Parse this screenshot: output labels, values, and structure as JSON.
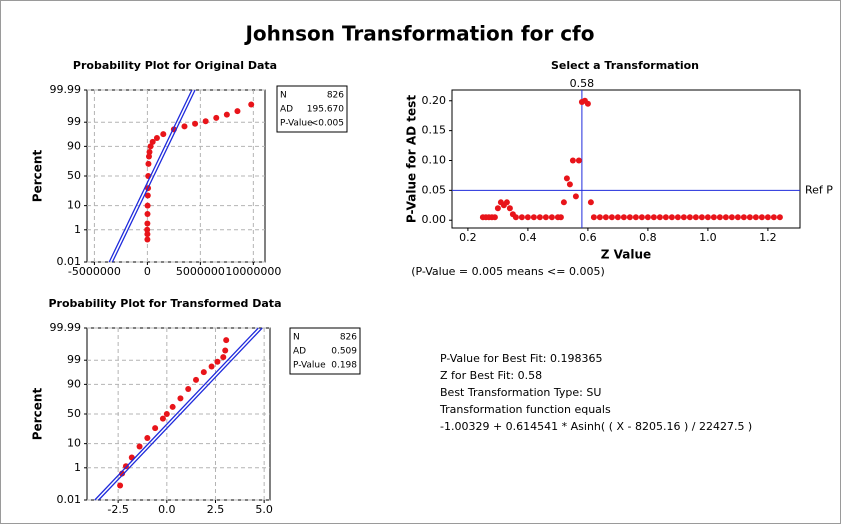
{
  "title": "Johnson Transformation for cfo",
  "chart_data": [
    {
      "type": "probability",
      "title": "Probability Plot for Original Data",
      "y_label": "Percent",
      "scale": "normal-probability",
      "grid": true,
      "xlim": [
        -5700000,
        11100000
      ],
      "xticks": [
        -5000000,
        0,
        5000000,
        10000000
      ],
      "ylim": [
        0.01,
        99.99
      ],
      "yticks": [
        0.01,
        1,
        10,
        50,
        90,
        99,
        99.99
      ],
      "series": [
        {
          "mode": "markers",
          "color": "#e8141a",
          "x": [
            0,
            0,
            -20000,
            0,
            10000,
            20000,
            40000,
            60000,
            80000,
            100000,
            150000,
            200000,
            300000,
            500000,
            900000,
            1500000,
            2500000,
            3500000,
            4500000,
            5500000,
            6500000,
            7500000,
            8500000,
            9800000
          ],
          "values": [
            0.3,
            0.6,
            1,
            2,
            5,
            10,
            20,
            30,
            50,
            70,
            80,
            85,
            90,
            93,
            95,
            96.5,
            97.8,
            98.4,
            98.8,
            99.1,
            99.4,
            99.6,
            99.75,
            99.9
          ]
        },
        {
          "mode": "line",
          "color": "#1f2bdc",
          "x": [
            -3600000,
            4200000
          ],
          "values": [
            0.01,
            99.99
          ]
        },
        {
          "mode": "line",
          "color": "#1f2bdc",
          "x": [
            -3300000,
            4500000
          ],
          "values": [
            0.01,
            99.99
          ]
        }
      ],
      "stats": [
        [
          "N",
          "826"
        ],
        [
          "AD",
          "195.670"
        ],
        [
          "P-Value",
          "<0.005"
        ]
      ]
    },
    {
      "type": "scatter",
      "title": "Select a Transformation",
      "x_label": "Z Value",
      "y_label": "P-Value for AD test",
      "grid": false,
      "xlim": [
        0.147,
        1.307
      ],
      "xticks": [
        0.2,
        0.4,
        0.6,
        0.8,
        {
          "value": 1,
          "label": "1.0"
        },
        1.2
      ],
      "ylim": [
        -0.013,
        0.218
      ],
      "yticks": [
        {
          "value": 0,
          "label": "0.00"
        },
        0.05,
        {
          "value": 0.1,
          "label": "0.10"
        },
        0.15,
        {
          "value": 0.2,
          "label": "0.20"
        }
      ],
      "series": [
        {
          "mode": "markers",
          "color": "#e8141a",
          "x": [
            0.25,
            0.26,
            0.27,
            0.28,
            0.29,
            0.3,
            0.31,
            0.32,
            0.33,
            0.34,
            0.35,
            0.36,
            0.38,
            0.4,
            0.42,
            0.44,
            0.46,
            0.48,
            0.5,
            0.51,
            0.52,
            0.53,
            0.54,
            0.55,
            0.56,
            0.57,
            0.58,
            0.59,
            0.6,
            0.61,
            0.62,
            0.64,
            0.66,
            0.68,
            0.7,
            0.72,
            0.74,
            0.76,
            0.78,
            0.8,
            0.82,
            0.84,
            0.86,
            0.88,
            0.9,
            0.92,
            0.94,
            0.96,
            0.98,
            1,
            1.02,
            1.04,
            1.06,
            1.08,
            1.1,
            1.12,
            1.14,
            1.16,
            1.18,
            1.2,
            1.22,
            1.24
          ],
          "values": [
            0.005,
            0.005,
            0.005,
            0.005,
            0.005,
            0.02,
            0.03,
            0.025,
            0.03,
            0.02,
            0.01,
            0.005,
            0.005,
            0.005,
            0.005,
            0.005,
            0.005,
            0.005,
            0.005,
            0.005,
            0.03,
            0.07,
            0.06,
            0.1,
            0.04,
            0.1,
            0.198,
            0.2,
            0.195,
            0.03,
            0.005,
            0.005,
            0.005,
            0.005,
            0.005,
            0.005,
            0.005,
            0.005,
            0.005,
            0.005,
            0.005,
            0.005,
            0.005,
            0.005,
            0.005,
            0.005,
            0.005,
            0.005,
            0.005,
            0.005,
            0.005,
            0.005,
            0.005,
            0.005,
            0.005,
            0.005,
            0.005,
            0.005,
            0.005,
            0.005,
            0.005,
            0.005
          ]
        }
      ],
      "ref_lines": [
        {
          "axis": "x",
          "value": 0.58,
          "color": "#1f2bdc"
        },
        {
          "axis": "y",
          "value": 0.05,
          "label": "Ref P",
          "color": "#1f2bdc"
        }
      ],
      "note": "(P-Value = 0.005 means <= 0.005)",
      "summary": [
        "P-Value for Best Fit: 0.198365",
        "Z for Best Fit: 0.58",
        "Best Transformation Type: SU",
        "Transformation function equals",
        "-1.00329 + 0.614541 * Asinh( ( X - 8205.16 ) / 22427.5 )"
      ]
    },
    {
      "type": "probability",
      "title": "Probability Plot for Transformed Data",
      "y_label": "Percent",
      "scale": "normal-probability",
      "grid": true,
      "xlim": [
        -4.1,
        5.3
      ],
      "xticks": [
        -2.5,
        {
          "value": 0,
          "label": "0.0"
        },
        2.5,
        {
          "value": 5,
          "label": "5.0"
        }
      ],
      "ylim": [
        0.01,
        99.99
      ],
      "yticks": [
        0.01,
        1,
        10,
        50,
        90,
        99,
        99.99
      ],
      "series": [
        {
          "mode": "markers",
          "color": "#e8141a",
          "x": [
            -2.4,
            -2.3,
            -2.1,
            -1.8,
            -1.4,
            -1,
            -0.6,
            -0.2,
            0,
            0.3,
            0.7,
            1.1,
            1.5,
            1.9,
            2.3,
            2.6,
            2.9,
            3,
            3.05
          ],
          "values": [
            0.1,
            0.5,
            1.2,
            3,
            8,
            15,
            27,
            42,
            50,
            62,
            75,
            86,
            93,
            96.5,
            98,
            98.8,
            99.3,
            99.7,
            99.93
          ]
        },
        {
          "mode": "line",
          "color": "#1f2bdc",
          "x": [
            -3.7,
            4.7
          ],
          "values": [
            0.01,
            99.99
          ]
        },
        {
          "mode": "line",
          "color": "#1f2bdc",
          "x": [
            -3.5,
            4.9
          ],
          "values": [
            0.01,
            99.99
          ]
        }
      ],
      "stats": [
        [
          "N",
          "826"
        ],
        [
          "AD",
          "0.509"
        ],
        [
          "P-Value",
          "0.198"
        ]
      ]
    }
  ]
}
